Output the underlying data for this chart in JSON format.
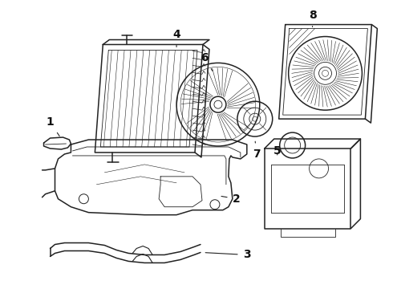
{
  "bg_color": "#ffffff",
  "line_color": "#222222",
  "label_color": "#111111",
  "label_fontsize": 10,
  "lw_main": 1.1,
  "lw_inner": 0.6,
  "lw_thin": 0.4
}
